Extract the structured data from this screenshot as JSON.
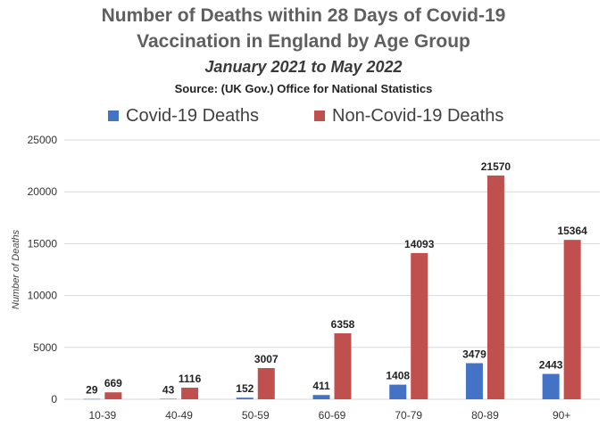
{
  "colors": {
    "covid": "#4472c4",
    "noncovid": "#c0504d",
    "grid": "#d9d9d9"
  },
  "chart_data": {
    "type": "bar",
    "title": "Number of Deaths within 28 Days of Covid-19 Vaccination in England by Age Group",
    "title_line1": "Number of Deaths within 28 Days of Covid-19",
    "title_line2": "Vaccination in England by Age Group",
    "subtitle": "January 2021 to May 2022",
    "source": "Source: (UK Gov.) Office for National Statistics",
    "xlabel": "",
    "ylabel": "Number of Deaths",
    "ylim": [
      0,
      25000
    ],
    "yticks": [
      0,
      5000,
      10000,
      15000,
      20000,
      25000
    ],
    "grid": true,
    "legend_position": "top",
    "categories": [
      "10-39",
      "40-49",
      "50-59",
      "60-69",
      "70-79",
      "80-89",
      "90+"
    ],
    "series": [
      {
        "name": "Covid-19 Deaths",
        "color_key": "covid",
        "values": [
          29,
          43,
          152,
          411,
          1408,
          3479,
          2443
        ]
      },
      {
        "name": "Non-Covid-19 Deaths",
        "color_key": "noncovid",
        "values": [
          669,
          1116,
          3007,
          6358,
          14093,
          21570,
          15364
        ]
      }
    ]
  }
}
